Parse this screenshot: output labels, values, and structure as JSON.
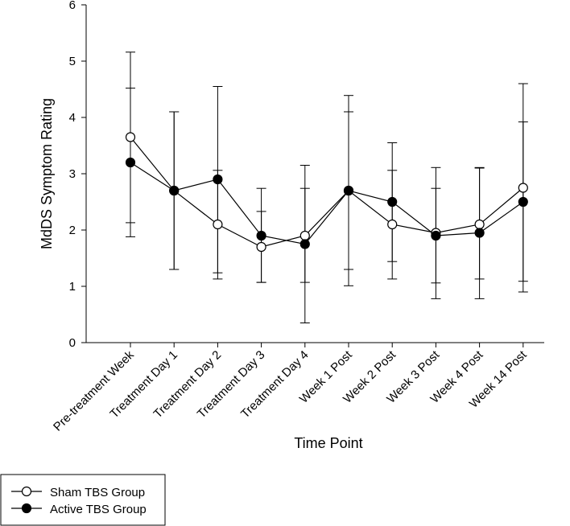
{
  "chart_data": {
    "type": "line",
    "title": "",
    "xlabel": "Time Point",
    "ylabel": "MdDS Symptom Rating",
    "ylim": [
      0,
      6
    ],
    "yticks": [
      0,
      1,
      2,
      3,
      4,
      5,
      6
    ],
    "grid": false,
    "legend_position": "bottom-left",
    "categories": [
      "Pre-treatment Week",
      "Treatment Day 1",
      "Treatment Day 2",
      "Treatment Day 3",
      "Treatment Day 4",
      "Week 1 Post",
      "Week 2 Post",
      "Week 3 Post",
      "Week 4 Post",
      "Week 14 Post"
    ],
    "series": [
      {
        "name": "Sham TBS Group",
        "marker": "open-circle",
        "values": [
          3.65,
          2.7,
          2.1,
          1.7,
          1.9,
          2.7,
          2.1,
          1.95,
          2.1,
          2.75
        ],
        "err_low": [
          2.13,
          1.3,
          1.13,
          1.07,
          1.07,
          1.01,
          1.13,
          0.78,
          1.13,
          1.09
        ],
        "err_high": [
          5.16,
          4.1,
          3.06,
          2.33,
          2.74,
          4.39,
          3.06,
          3.11,
          3.11,
          4.6
        ]
      },
      {
        "name": "Active TBS Group",
        "marker": "filled-circle",
        "values": [
          3.2,
          2.7,
          2.9,
          1.9,
          1.75,
          2.7,
          2.5,
          1.9,
          1.95,
          2.5
        ],
        "err_low": [
          1.88,
          1.3,
          1.24,
          1.07,
          0.35,
          1.3,
          1.44,
          1.06,
          0.78,
          0.9
        ],
        "err_high": [
          4.52,
          4.1,
          4.55,
          2.74,
          3.15,
          4.1,
          3.55,
          2.74,
          3.1,
          3.92
        ]
      }
    ]
  }
}
